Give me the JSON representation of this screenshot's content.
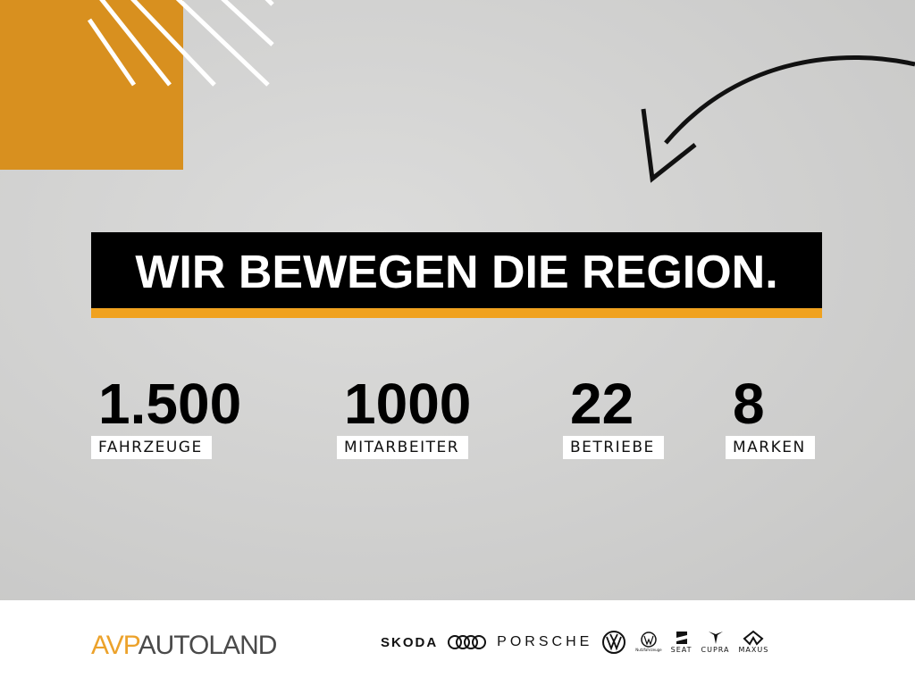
{
  "headline": "WIR BEWEGEN DIE REGION.",
  "stats": [
    {
      "value": "1.500",
      "label": "FAHRZEUGE"
    },
    {
      "value": "1000",
      "label": "MITARBEITER"
    },
    {
      "value": "22",
      "label": "BETRIEBE"
    },
    {
      "value": "8",
      "label": "MARKEN"
    }
  ],
  "footer": {
    "logo": {
      "part1": "AVP",
      "part2": "AUTOLAND"
    },
    "brands": {
      "skoda": "SKODA",
      "porsche": "PORSCHE",
      "seat": "SEAT",
      "cupra": "CUPRA",
      "maxus": "MAXUS",
      "vw_nutz": "Nutzfahrzeuge"
    }
  },
  "colors": {
    "orange": "#d8901f",
    "accent_line": "#f0a21f",
    "banner": "#000000",
    "logo_orange": "#eca22b",
    "logo_gray": "#4a4a4a"
  }
}
